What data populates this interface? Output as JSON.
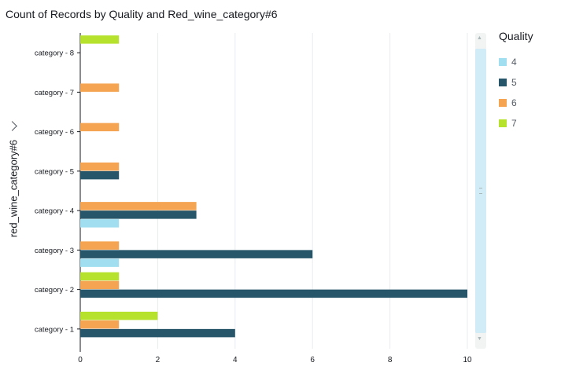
{
  "page_title": "Count of Records by Quality and Red_wine_category#6",
  "y_axis_title": "red_wine_category#6",
  "legend": {
    "title": "Quality",
    "items": [
      {
        "label": "4",
        "color": "#a1dff0"
      },
      {
        "label": "5",
        "color": "#27566b"
      },
      {
        "label": "6",
        "color": "#f5a452"
      },
      {
        "label": "7",
        "color": "#b6e22e"
      }
    ]
  },
  "chart_data": {
    "type": "bar",
    "orientation": "horizontal",
    "title": "Count of Records by Quality and Red_wine_category#6",
    "xlabel": "",
    "ylabel": "red_wine_category#6",
    "categories": [
      "category - 1",
      "category - 2",
      "category - 3",
      "category - 4",
      "category - 5",
      "category - 6",
      "category - 7",
      "category - 8"
    ],
    "x_ticks": [
      "0",
      "2",
      "4",
      "6",
      "8",
      "10"
    ],
    "xlim": [
      0,
      10
    ],
    "grid": true,
    "legend_position": "right",
    "series": [
      {
        "name": "4",
        "color": "#a1dff0",
        "values": [
          0,
          0,
          1,
          1,
          0,
          0,
          0,
          0
        ]
      },
      {
        "name": "5",
        "color": "#27566b",
        "values": [
          4,
          10,
          6,
          3,
          1,
          0,
          0,
          0
        ]
      },
      {
        "name": "6",
        "color": "#f5a452",
        "values": [
          1,
          1,
          1,
          3,
          1,
          1,
          1,
          0
        ]
      },
      {
        "name": "7",
        "color": "#b6e22e",
        "values": [
          2,
          1,
          0,
          0,
          0,
          0,
          0,
          1
        ]
      }
    ]
  }
}
